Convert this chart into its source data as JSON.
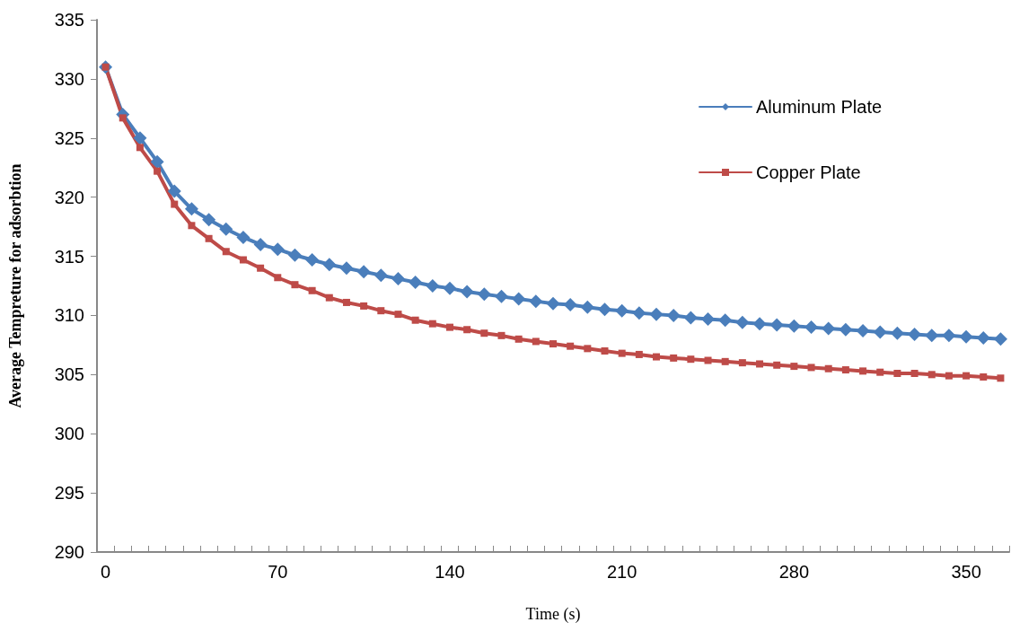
{
  "chart_data": {
    "type": "line",
    "xlabel": "Time (s)",
    "ylabel": "Average Tempreture for adsorbtion",
    "categories": [
      "0",
      null,
      null,
      null,
      null,
      null,
      null,
      null,
      null,
      null,
      "70",
      null,
      null,
      null,
      null,
      null,
      null,
      null,
      null,
      null,
      "140",
      null,
      null,
      null,
      null,
      null,
      null,
      null,
      null,
      null,
      "210",
      null,
      null,
      null,
      null,
      null,
      null,
      null,
      null,
      null,
      "280",
      null,
      null,
      null,
      null,
      null,
      null,
      null,
      null,
      null,
      "350",
      null,
      null
    ],
    "series": [
      {
        "name": "Aluminum Plate",
        "color": "#4a7ebb",
        "marker": "diamond",
        "values": [
          331.0,
          327.0,
          325.0,
          323.0,
          320.5,
          319.0,
          318.1,
          317.3,
          316.6,
          316.0,
          315.6,
          315.1,
          314.7,
          314.3,
          314.0,
          313.7,
          313.4,
          313.1,
          312.8,
          312.5,
          312.3,
          312.0,
          311.8,
          311.6,
          311.4,
          311.2,
          311.0,
          310.9,
          310.7,
          310.5,
          310.4,
          310.2,
          310.1,
          310.0,
          309.8,
          309.7,
          309.6,
          309.4,
          309.3,
          309.2,
          309.1,
          309.0,
          308.9,
          308.8,
          308.7,
          308.6,
          308.5,
          308.4,
          308.3,
          308.3,
          308.2,
          308.1,
          308.0
        ]
      },
      {
        "name": "Copper Plate",
        "color": "#be4b48",
        "marker": "square",
        "values": [
          331.0,
          326.7,
          324.2,
          322.2,
          319.4,
          317.6,
          316.5,
          315.4,
          314.7,
          314.0,
          313.2,
          312.6,
          312.1,
          311.5,
          311.1,
          310.8,
          310.4,
          310.1,
          309.6,
          309.3,
          309.0,
          308.8,
          308.5,
          308.3,
          308.0,
          307.8,
          307.6,
          307.4,
          307.2,
          307.0,
          306.8,
          306.7,
          306.5,
          306.4,
          306.3,
          306.2,
          306.1,
          306.0,
          305.9,
          305.8,
          305.7,
          305.6,
          305.5,
          305.4,
          305.3,
          305.2,
          305.1,
          305.1,
          305.0,
          304.9,
          304.9,
          304.8,
          304.7
        ]
      }
    ],
    "ylim": [
      290,
      335
    ],
    "yticks": [
      290,
      295,
      300,
      305,
      310,
      315,
      320,
      325,
      330,
      335
    ],
    "grid": false,
    "legend": "top right",
    "line_style": "solid"
  }
}
